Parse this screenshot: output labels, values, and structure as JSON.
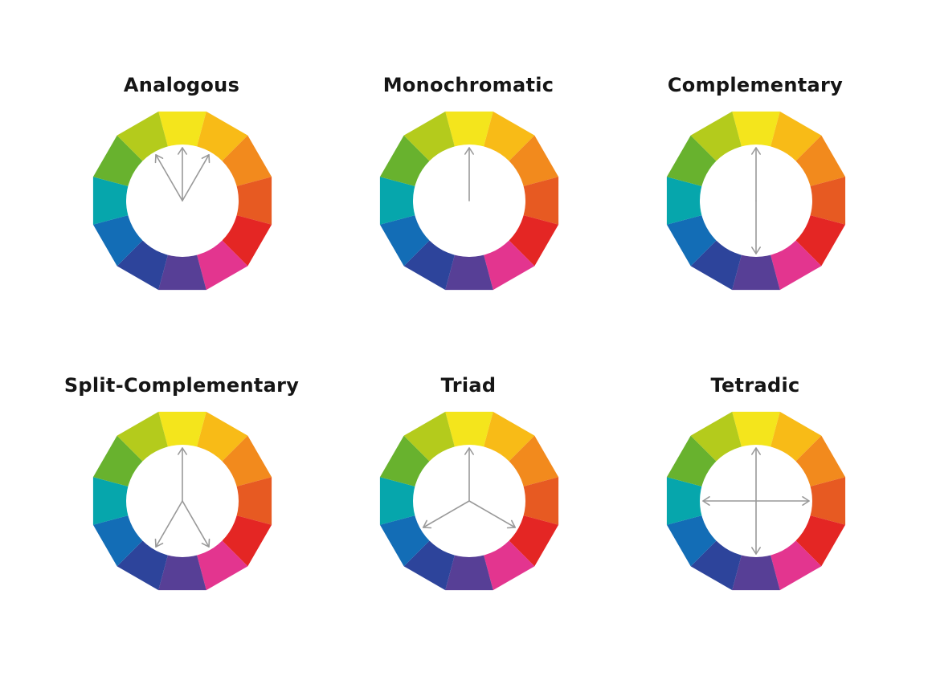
{
  "wheel_colors": [
    {
      "name": "yellow",
      "hex": "#f4e51c"
    },
    {
      "name": "yellow-orange",
      "hex": "#f8bb17"
    },
    {
      "name": "orange",
      "hex": "#f28a1d"
    },
    {
      "name": "red-orange",
      "hex": "#e75a22"
    },
    {
      "name": "red",
      "hex": "#e42624"
    },
    {
      "name": "red-violet",
      "hex": "#e3358f"
    },
    {
      "name": "violet",
      "hex": "#573f96"
    },
    {
      "name": "blue-violet",
      "hex": "#2d449b"
    },
    {
      "name": "blue",
      "hex": "#136db6"
    },
    {
      "name": "blue-green",
      "hex": "#06a6ac"
    },
    {
      "name": "green",
      "hex": "#68b22e"
    },
    {
      "name": "yellow-green",
      "hex": "#b4cb1c"
    }
  ],
  "arrow_color": "#999999",
  "diagrams": [
    {
      "title": "Analogous",
      "arrows_deg": [
        -30,
        0,
        30
      ],
      "arrow_origin": "center"
    },
    {
      "title": "Monochromatic",
      "arrows_deg": [
        0
      ],
      "arrow_origin": "center"
    },
    {
      "title": "Complementary",
      "arrows_deg": [
        0,
        180
      ],
      "arrow_origin": "center"
    },
    {
      "title": "Split-Complementary",
      "arrows_deg": [
        0,
        150,
        210
      ],
      "arrow_origin": "center"
    },
    {
      "title": "Triad",
      "arrows_deg": [
        0,
        120,
        240
      ],
      "arrow_origin": "center"
    },
    {
      "title": "Tetradic",
      "arrows_deg": [
        0,
        90,
        180,
        270
      ],
      "arrow_origin": "center"
    }
  ]
}
